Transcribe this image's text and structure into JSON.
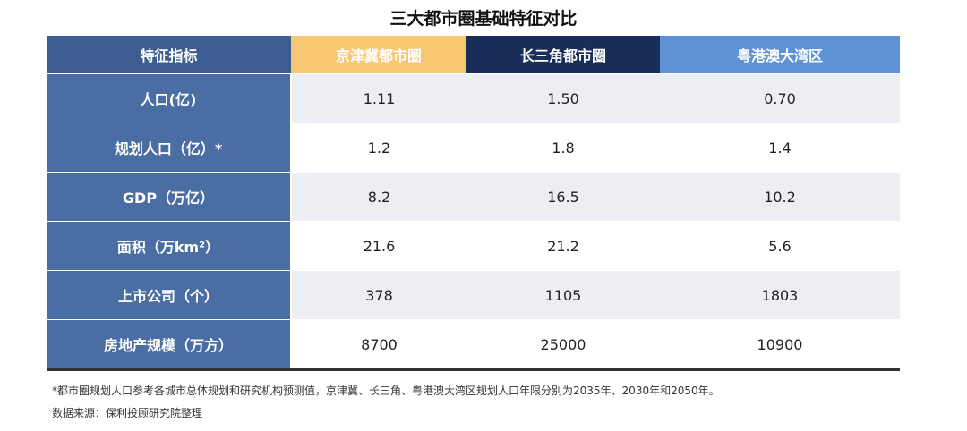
{
  "title": "三大都市圈基础特征对比",
  "table": {
    "header": [
      "特征指标",
      "京津冀都市圈",
      "长三角都市圈",
      "粤港澳大湾区"
    ],
    "rows": [
      [
        "人口(亿)",
        "1.11",
        "1.50",
        "0.70"
      ],
      [
        "规划人口（亿）*",
        "1.2",
        "1.8",
        "1.4"
      ],
      [
        "GDP（万亿）",
        "8.2",
        "16.5",
        "10.2"
      ],
      [
        "面积（万km²）",
        "21.6",
        "21.2",
        "5.6"
      ],
      [
        "上市公司（个）",
        "378",
        "1105",
        "1803"
      ],
      [
        "房地产规模（万方）",
        "8700",
        "25000",
        "10900"
      ]
    ]
  },
  "notes": [
    "*都市圈规划人口参考各城市总体规划和研究机构预测值，京津冀、长三角、粤港澳大湾区规划人口年限分别为2035年、2030年和2050年。",
    "数据来源：保利投顾研究院整理"
  ]
}
